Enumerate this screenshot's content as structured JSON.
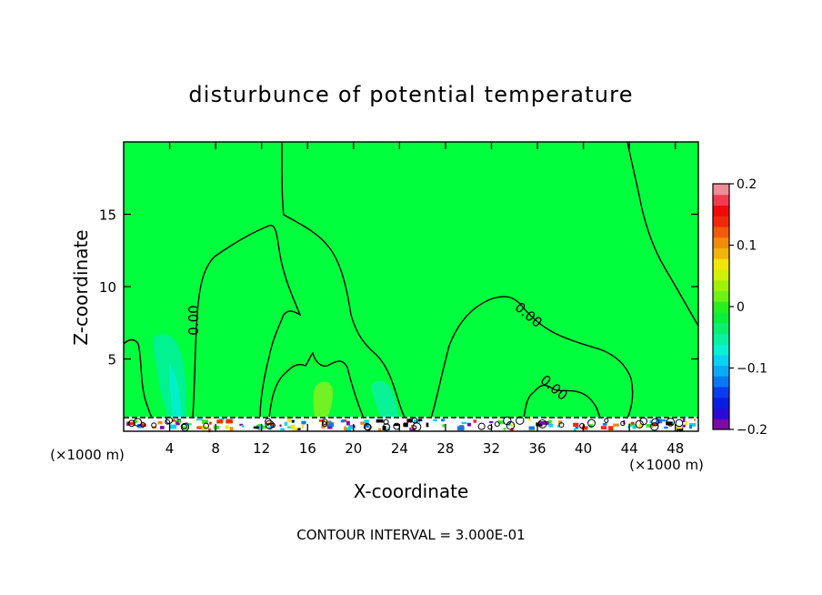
{
  "chart_data": {
    "type": "heatmap",
    "title": "disturbunce of potential temperature",
    "xlabel": "X-coordinate",
    "ylabel": "Z-coordinate",
    "x_unit": "(×1000 m)",
    "xlim": [
      0,
      50
    ],
    "ylim": [
      0,
      20
    ],
    "x_ticks": [
      4,
      8,
      12,
      16,
      20,
      24,
      28,
      32,
      36,
      40,
      44,
      48
    ],
    "y_ticks": [
      5,
      10,
      15
    ],
    "footer": "CONTOUR INTERVAL = 3.000E-01",
    "contour_labels": [
      "0.00",
      "0.00",
      "0.00"
    ],
    "colorbar": {
      "min": -0.2,
      "max": 0.2,
      "ticks": [
        0.2,
        0.1,
        0,
        -0.1,
        -0.2
      ],
      "tick_labels": [
        "0.2",
        "0.1",
        "0",
        "−0.1",
        "−0.2"
      ],
      "colors": [
        "#7d0aa8",
        "#2b0ad6",
        "#0a1ee0",
        "#0a3cf0",
        "#0a78f5",
        "#0aaaf5",
        "#0ad2f0",
        "#0af0d2",
        "#0af0a0",
        "#0af06e",
        "#0af03c",
        "#28f01e",
        "#6ef014",
        "#a0f00a",
        "#d2f00a",
        "#f0e60a",
        "#f0b40a",
        "#f08c0a",
        "#f05a0a",
        "#f0280a",
        "#f00a0a",
        "#f03c50",
        "#f08c96"
      ]
    },
    "background_color": "#00ff3c",
    "contour_color": "#000000"
  }
}
